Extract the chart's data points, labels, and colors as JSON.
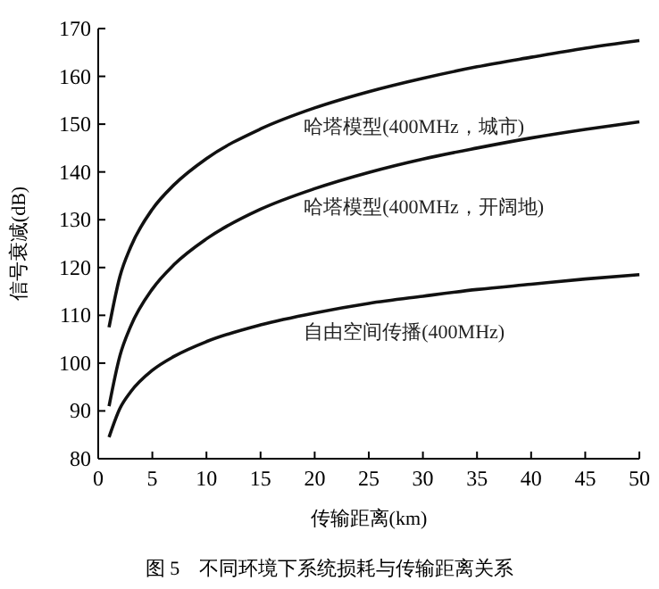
{
  "chart_data": {
    "type": "line",
    "title": "图 5　不同环境下系统损耗与传输距离关系",
    "xlabel": "传输距离(km)",
    "ylabel": "信号衰减(dB)",
    "xlim": [
      0,
      50
    ],
    "xticks": [
      0,
      5,
      10,
      15,
      20,
      25,
      30,
      35,
      40,
      45,
      50
    ],
    "ylim": [
      80,
      170
    ],
    "yticks": [
      80,
      90,
      100,
      110,
      120,
      130,
      140,
      150,
      160,
      170
    ],
    "grid": false,
    "marker": "none",
    "line_style": "solid",
    "x": [
      1,
      2,
      3,
      5,
      7,
      10,
      15,
      20,
      25,
      30,
      35,
      40,
      45,
      50
    ],
    "series": [
      {
        "name": "哈塔模型(400MHz，城市)",
        "color": "#111111",
        "values": [
          107.5,
          118.1,
          124.3,
          132.2,
          137.3,
          142.8,
          149,
          153.4,
          156.8,
          159.6,
          162,
          164,
          165.9,
          167.5
        ]
      },
      {
        "name": "哈塔模型(400MHz，开阔地)",
        "color": "#111111",
        "values": [
          91,
          101.5,
          107.7,
          115.5,
          120.6,
          126,
          132.2,
          136.5,
          139.9,
          142.7,
          145,
          147.1,
          148.9,
          150.5
        ]
      },
      {
        "name": "自由空间传播(400MHz)",
        "color": "#111111",
        "values": [
          84.5,
          90.5,
          94,
          98.5,
          101.4,
          104.5,
          108,
          110.5,
          112.5,
          114,
          115.4,
          116.5,
          117.6,
          118.5
        ]
      }
    ]
  }
}
